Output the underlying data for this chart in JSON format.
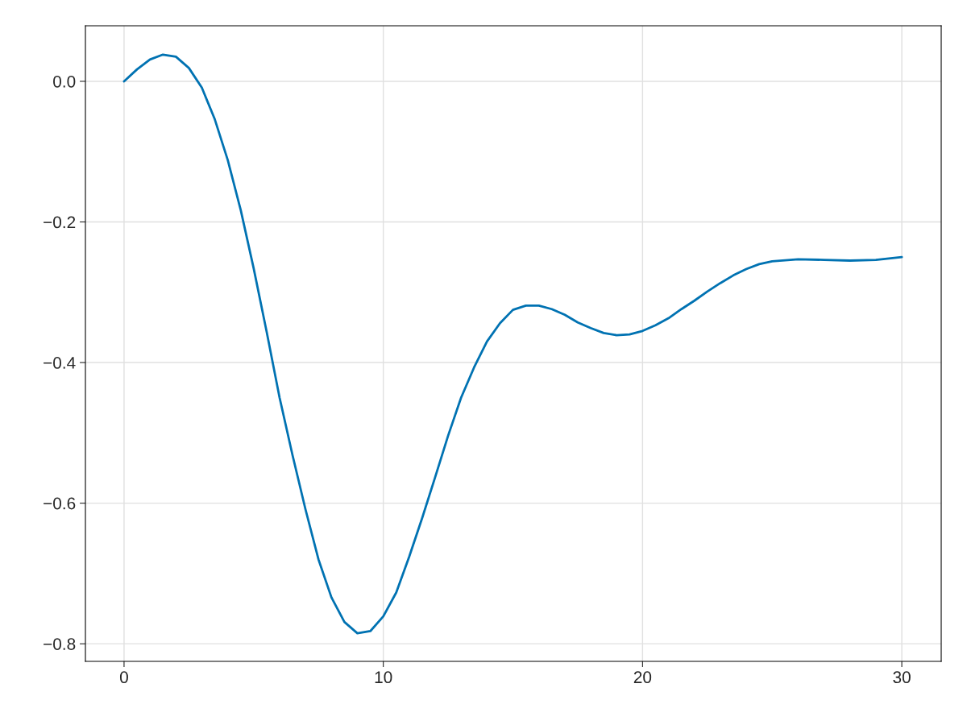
{
  "chart_data": {
    "type": "line",
    "x": [
      0,
      0.5,
      1,
      1.5,
      2,
      2.5,
      3,
      3.5,
      4,
      4.5,
      5,
      5.5,
      6,
      6.5,
      7,
      7.5,
      8,
      8.5,
      9,
      9.5,
      10,
      10.5,
      11,
      11.5,
      12,
      12.5,
      13,
      13.5,
      14,
      14.5,
      15,
      15.5,
      16,
      16.5,
      17,
      17.5,
      18,
      18.5,
      19,
      19.5,
      20,
      20.5,
      21,
      21.5,
      22,
      22.5,
      23,
      23.5,
      24,
      24.5,
      25,
      26,
      27,
      28,
      29,
      30
    ],
    "series": [
      {
        "color": "#0072b2",
        "values": [
          0,
          0.017,
          0.031,
          0.038,
          0.035,
          0.019,
          -0.009,
          -0.054,
          -0.112,
          -0.183,
          -0.266,
          -0.356,
          -0.45,
          -0.532,
          -0.609,
          -0.68,
          -0.734,
          -0.769,
          -0.785,
          -0.782,
          -0.761,
          -0.727,
          -0.676,
          -0.621,
          -0.563,
          -0.504,
          -0.45,
          -0.407,
          -0.37,
          -0.344,
          -0.325,
          -0.319,
          -0.319,
          -0.324,
          -0.332,
          -0.343,
          -0.351,
          -0.358,
          -0.361,
          -0.36,
          -0.355,
          -0.347,
          -0.337,
          -0.324,
          -0.312,
          -0.299,
          -0.287,
          -0.276,
          -0.267,
          -0.26,
          -0.256,
          -0.253,
          -0.254,
          -0.255,
          -0.254,
          -0.25
        ]
      }
    ],
    "xlim": [
      -1.49,
      31.52
    ],
    "ylim": [
      -0.825,
      0.079
    ],
    "xticks": [
      0,
      10,
      20,
      30
    ],
    "yticks": [
      {
        "value": 0,
        "label": "0.0"
      },
      {
        "value": -0.2,
        "label": "−0.2"
      },
      {
        "value": -0.4,
        "label": "−0.4"
      },
      {
        "value": -0.6,
        "label": "−0.6"
      },
      {
        "value": -0.8,
        "label": "−0.8"
      }
    ],
    "grid": true,
    "legend": false,
    "marker": "none",
    "line_style": "solid"
  }
}
